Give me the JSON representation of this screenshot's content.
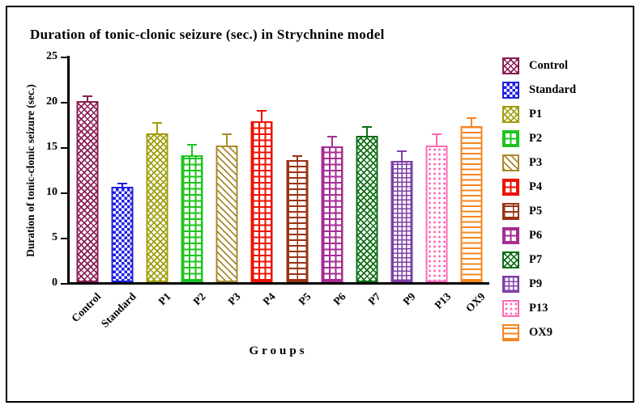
{
  "chart_data": {
    "type": "bar",
    "title": "Duration of tonic-clonic seizure (sec.) in Strychnine model",
    "xlabel": "Groups",
    "ylabel": "Duration of tonic-clonic seizure (sec.)",
    "ylim": [
      0,
      25
    ],
    "yticks": [
      0,
      5,
      10,
      15,
      20,
      25
    ],
    "grid": false,
    "legend_position": "right",
    "categories": [
      "Control",
      "Standard",
      "P1",
      "P2",
      "P3",
      "P4",
      "P5",
      "P6",
      "P7",
      "P9",
      "P13",
      "OX9"
    ],
    "values": [
      20.0,
      10.5,
      16.4,
      14.0,
      15.1,
      17.8,
      13.5,
      15.0,
      16.2,
      13.4,
      15.1,
      17.2
    ],
    "errors": [
      0.5,
      0.4,
      1.2,
      1.2,
      1.2,
      1.1,
      0.45,
      1.1,
      0.9,
      1.1,
      1.2,
      0.9
    ],
    "legend": [
      "Control",
      "Standard",
      "P1",
      "P2",
      "P3",
      "P4",
      "P5",
      "P6",
      "P7",
      "P9",
      "P13",
      "OX9"
    ],
    "axis_color": "#000000",
    "background_color": "#ffffff",
    "series_styles": [
      {
        "name": "Control",
        "color": "#8a1f53",
        "pattern": "crosshatch-diagonal"
      },
      {
        "name": "Standard",
        "color": "#1f1fe0",
        "pattern": "checkerboard"
      },
      {
        "name": "P1",
        "color": "#9e9e0c",
        "pattern": "crosshatch-diagonal"
      },
      {
        "name": "P2",
        "color": "#1ec41e",
        "pattern": "grid"
      },
      {
        "name": "P3",
        "color": "#ab8a2e",
        "pattern": "diagonal"
      },
      {
        "name": "P4",
        "color": "#ee1republic100",
        "pattern": "grid"
      },
      {
        "name": "P5",
        "color": "#993312",
        "pattern": "brick"
      },
      {
        "name": "P6",
        "color": "#a62d93",
        "pattern": "grid"
      },
      {
        "name": "P7",
        "color": "#0f6e14",
        "pattern": "crosshatch-diagonal"
      },
      {
        "name": "P9",
        "color": "#7e3fa8",
        "pattern": "fine-grid"
      },
      {
        "name": "P13",
        "color": "#ff69b4",
        "pattern": "dots"
      },
      {
        "name": "OX9",
        "color": "#f5861f",
        "pattern": "horizontal-lines"
      }
    ]
  }
}
